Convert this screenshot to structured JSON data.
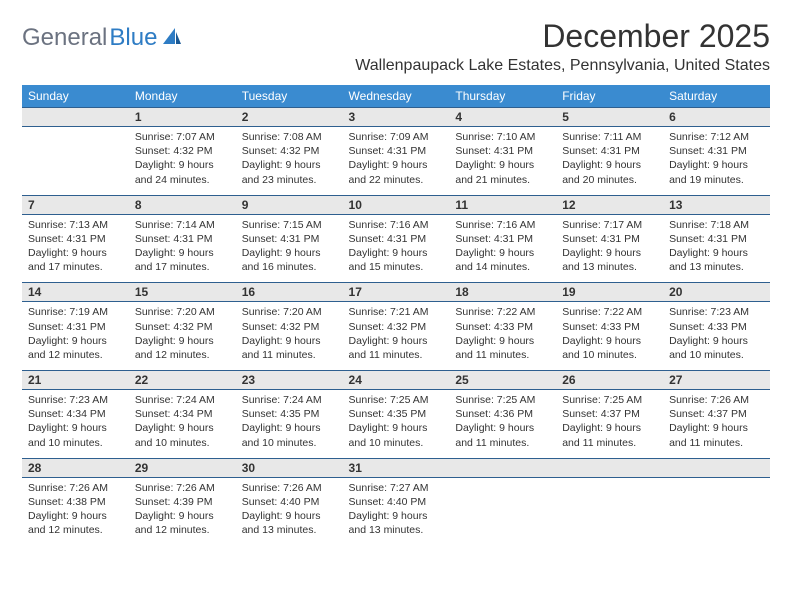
{
  "logo": {
    "general": "General",
    "blue": "Blue"
  },
  "title": "December 2025",
  "location": "Wallenpaupack Lake Estates, Pennsylvania, United States",
  "colors": {
    "header_bg": "#3a8bd0",
    "header_text": "#ffffff",
    "daynum_bg": "#e8e8e8",
    "border": "#2e5f8f",
    "text": "#333333",
    "logo_gray": "#6b7280",
    "logo_blue": "#2e7cc4"
  },
  "day_headers": [
    "Sunday",
    "Monday",
    "Tuesday",
    "Wednesday",
    "Thursday",
    "Friday",
    "Saturday"
  ],
  "weeks": [
    [
      {
        "num": "",
        "sunrise": "",
        "sunset": "",
        "daylight": ""
      },
      {
        "num": "1",
        "sunrise": "Sunrise: 7:07 AM",
        "sunset": "Sunset: 4:32 PM",
        "daylight": "Daylight: 9 hours and 24 minutes."
      },
      {
        "num": "2",
        "sunrise": "Sunrise: 7:08 AM",
        "sunset": "Sunset: 4:32 PM",
        "daylight": "Daylight: 9 hours and 23 minutes."
      },
      {
        "num": "3",
        "sunrise": "Sunrise: 7:09 AM",
        "sunset": "Sunset: 4:31 PM",
        "daylight": "Daylight: 9 hours and 22 minutes."
      },
      {
        "num": "4",
        "sunrise": "Sunrise: 7:10 AM",
        "sunset": "Sunset: 4:31 PM",
        "daylight": "Daylight: 9 hours and 21 minutes."
      },
      {
        "num": "5",
        "sunrise": "Sunrise: 7:11 AM",
        "sunset": "Sunset: 4:31 PM",
        "daylight": "Daylight: 9 hours and 20 minutes."
      },
      {
        "num": "6",
        "sunrise": "Sunrise: 7:12 AM",
        "sunset": "Sunset: 4:31 PM",
        "daylight": "Daylight: 9 hours and 19 minutes."
      }
    ],
    [
      {
        "num": "7",
        "sunrise": "Sunrise: 7:13 AM",
        "sunset": "Sunset: 4:31 PM",
        "daylight": "Daylight: 9 hours and 17 minutes."
      },
      {
        "num": "8",
        "sunrise": "Sunrise: 7:14 AM",
        "sunset": "Sunset: 4:31 PM",
        "daylight": "Daylight: 9 hours and 17 minutes."
      },
      {
        "num": "9",
        "sunrise": "Sunrise: 7:15 AM",
        "sunset": "Sunset: 4:31 PM",
        "daylight": "Daylight: 9 hours and 16 minutes."
      },
      {
        "num": "10",
        "sunrise": "Sunrise: 7:16 AM",
        "sunset": "Sunset: 4:31 PM",
        "daylight": "Daylight: 9 hours and 15 minutes."
      },
      {
        "num": "11",
        "sunrise": "Sunrise: 7:16 AM",
        "sunset": "Sunset: 4:31 PM",
        "daylight": "Daylight: 9 hours and 14 minutes."
      },
      {
        "num": "12",
        "sunrise": "Sunrise: 7:17 AM",
        "sunset": "Sunset: 4:31 PM",
        "daylight": "Daylight: 9 hours and 13 minutes."
      },
      {
        "num": "13",
        "sunrise": "Sunrise: 7:18 AM",
        "sunset": "Sunset: 4:31 PM",
        "daylight": "Daylight: 9 hours and 13 minutes."
      }
    ],
    [
      {
        "num": "14",
        "sunrise": "Sunrise: 7:19 AM",
        "sunset": "Sunset: 4:31 PM",
        "daylight": "Daylight: 9 hours and 12 minutes."
      },
      {
        "num": "15",
        "sunrise": "Sunrise: 7:20 AM",
        "sunset": "Sunset: 4:32 PM",
        "daylight": "Daylight: 9 hours and 12 minutes."
      },
      {
        "num": "16",
        "sunrise": "Sunrise: 7:20 AM",
        "sunset": "Sunset: 4:32 PM",
        "daylight": "Daylight: 9 hours and 11 minutes."
      },
      {
        "num": "17",
        "sunrise": "Sunrise: 7:21 AM",
        "sunset": "Sunset: 4:32 PM",
        "daylight": "Daylight: 9 hours and 11 minutes."
      },
      {
        "num": "18",
        "sunrise": "Sunrise: 7:22 AM",
        "sunset": "Sunset: 4:33 PM",
        "daylight": "Daylight: 9 hours and 11 minutes."
      },
      {
        "num": "19",
        "sunrise": "Sunrise: 7:22 AM",
        "sunset": "Sunset: 4:33 PM",
        "daylight": "Daylight: 9 hours and 10 minutes."
      },
      {
        "num": "20",
        "sunrise": "Sunrise: 7:23 AM",
        "sunset": "Sunset: 4:33 PM",
        "daylight": "Daylight: 9 hours and 10 minutes."
      }
    ],
    [
      {
        "num": "21",
        "sunrise": "Sunrise: 7:23 AM",
        "sunset": "Sunset: 4:34 PM",
        "daylight": "Daylight: 9 hours and 10 minutes."
      },
      {
        "num": "22",
        "sunrise": "Sunrise: 7:24 AM",
        "sunset": "Sunset: 4:34 PM",
        "daylight": "Daylight: 9 hours and 10 minutes."
      },
      {
        "num": "23",
        "sunrise": "Sunrise: 7:24 AM",
        "sunset": "Sunset: 4:35 PM",
        "daylight": "Daylight: 9 hours and 10 minutes."
      },
      {
        "num": "24",
        "sunrise": "Sunrise: 7:25 AM",
        "sunset": "Sunset: 4:35 PM",
        "daylight": "Daylight: 9 hours and 10 minutes."
      },
      {
        "num": "25",
        "sunrise": "Sunrise: 7:25 AM",
        "sunset": "Sunset: 4:36 PM",
        "daylight": "Daylight: 9 hours and 11 minutes."
      },
      {
        "num": "26",
        "sunrise": "Sunrise: 7:25 AM",
        "sunset": "Sunset: 4:37 PM",
        "daylight": "Daylight: 9 hours and 11 minutes."
      },
      {
        "num": "27",
        "sunrise": "Sunrise: 7:26 AM",
        "sunset": "Sunset: 4:37 PM",
        "daylight": "Daylight: 9 hours and 11 minutes."
      }
    ],
    [
      {
        "num": "28",
        "sunrise": "Sunrise: 7:26 AM",
        "sunset": "Sunset: 4:38 PM",
        "daylight": "Daylight: 9 hours and 12 minutes."
      },
      {
        "num": "29",
        "sunrise": "Sunrise: 7:26 AM",
        "sunset": "Sunset: 4:39 PM",
        "daylight": "Daylight: 9 hours and 12 minutes."
      },
      {
        "num": "30",
        "sunrise": "Sunrise: 7:26 AM",
        "sunset": "Sunset: 4:40 PM",
        "daylight": "Daylight: 9 hours and 13 minutes."
      },
      {
        "num": "31",
        "sunrise": "Sunrise: 7:27 AM",
        "sunset": "Sunset: 4:40 PM",
        "daylight": "Daylight: 9 hours and 13 minutes."
      },
      {
        "num": "",
        "sunrise": "",
        "sunset": "",
        "daylight": ""
      },
      {
        "num": "",
        "sunrise": "",
        "sunset": "",
        "daylight": ""
      },
      {
        "num": "",
        "sunrise": "",
        "sunset": "",
        "daylight": ""
      }
    ]
  ]
}
